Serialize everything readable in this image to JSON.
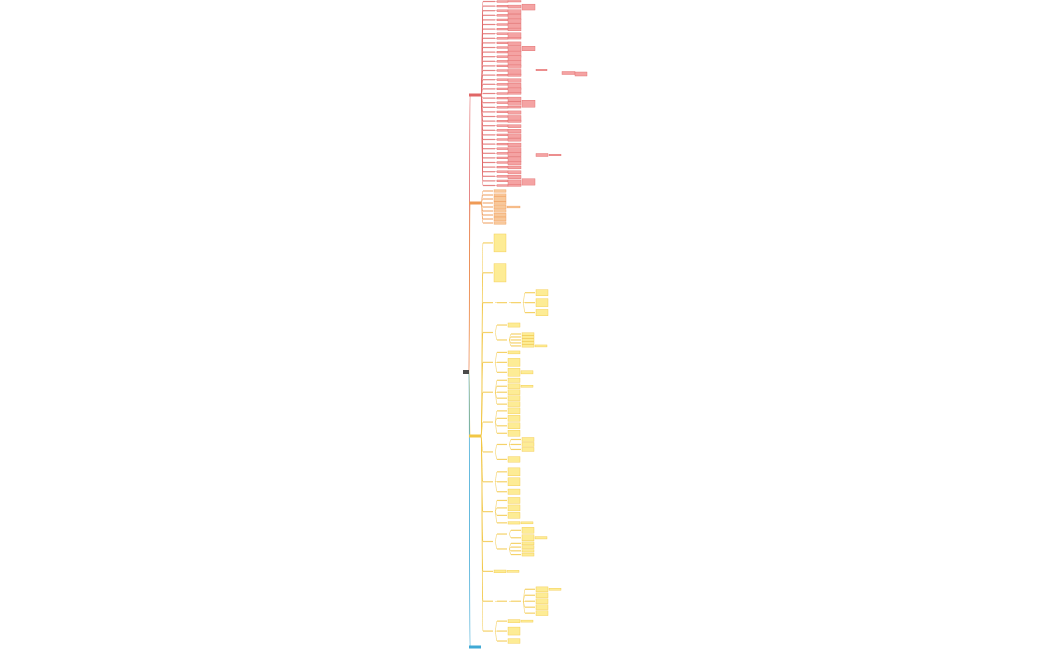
{
  "root": {
    "color": "#4a4a4a"
  },
  "branches": [
    {
      "color": "#e06666",
      "fill": "#f4a3a3"
    },
    {
      "color": "#ef9a55",
      "fill": "#f8c89a"
    },
    {
      "color": "#f2c744",
      "fill": "#fdec95"
    },
    {
      "color": "#3fa9d5",
      "fill": "#8fd0ea"
    }
  ]
}
